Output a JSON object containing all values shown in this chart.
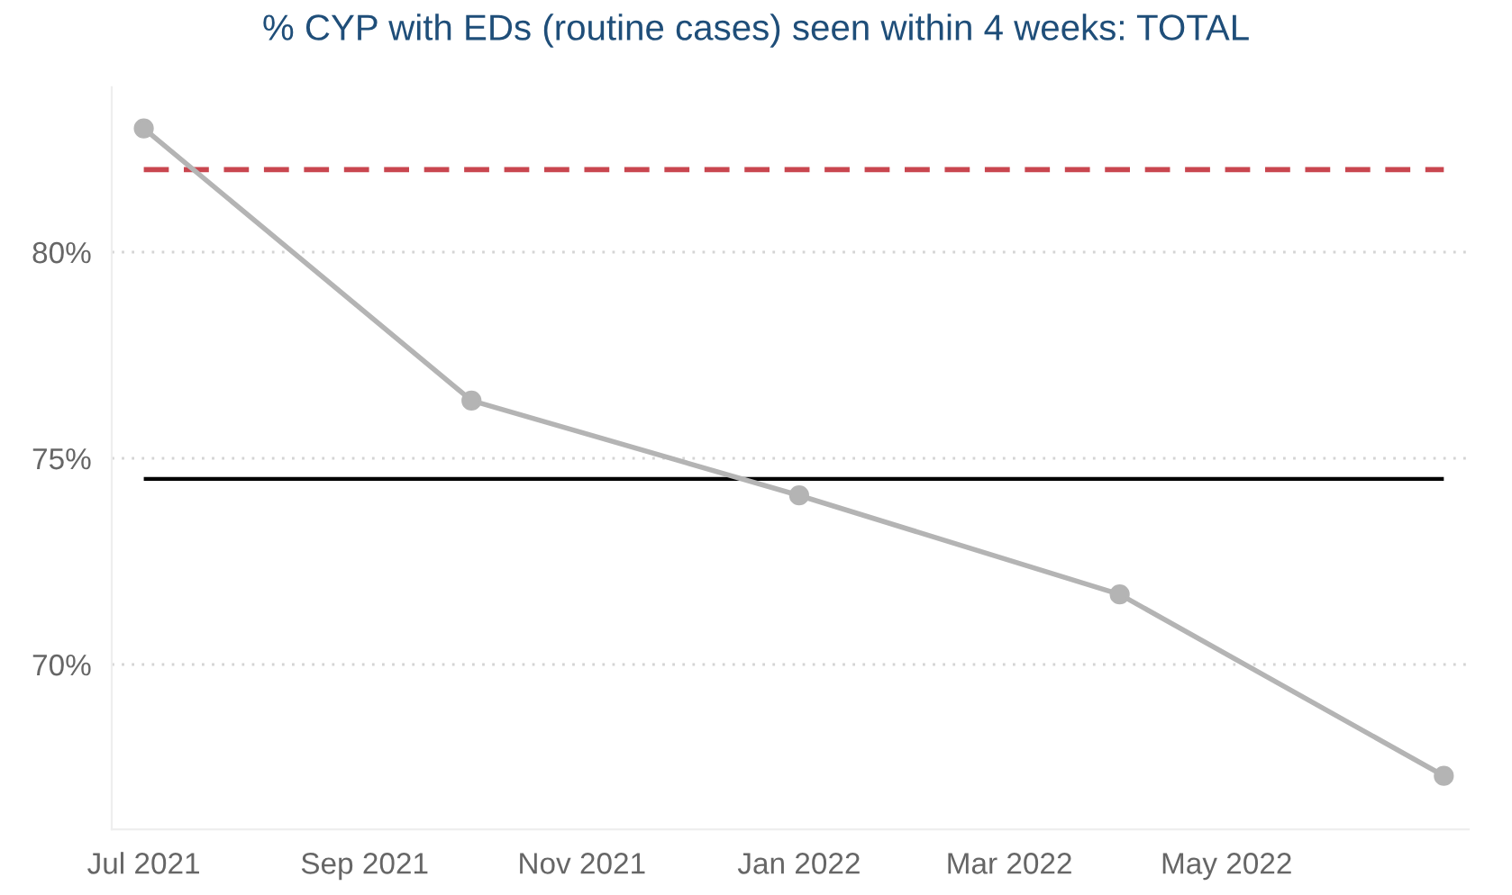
{
  "chart_data": {
    "type": "line",
    "title": "% CYP with EDs (routine cases) seen within 4 weeks: TOTAL",
    "x": [
      "2021-07",
      "2021-10",
      "2022-01",
      "2022-04",
      "2022-07"
    ],
    "series": [
      {
        "color": "#b4b4b4",
        "values": [
          83.0,
          76.4,
          74.1,
          71.7,
          67.3
        ]
      }
    ],
    "xlim": [
      "2021-06-22",
      "2022-07-08"
    ],
    "xticks": [
      {
        "value": "2021-07",
        "label": "Jul 2021"
      },
      {
        "value": "2021-09",
        "label": "Sep 2021"
      },
      {
        "value": "2021-11",
        "label": "Nov 2021"
      },
      {
        "value": "2022-01",
        "label": "Jan 2022"
      },
      {
        "value": "2022-03",
        "label": "Mar 2022"
      },
      {
        "value": "2022-05",
        "label": "May 2022"
      }
    ],
    "ylim": [
      66,
      84
    ],
    "yticks": [
      {
        "value": 70,
        "label": "70%"
      },
      {
        "value": 75,
        "label": "75%"
      },
      {
        "value": 80,
        "label": "80%"
      }
    ],
    "grid": "y",
    "marker": "circle",
    "line_style": "solid",
    "ref_lines": [
      {
        "axis": "y",
        "value": 82,
        "color": "#c9464f",
        "line_style": "dashed"
      },
      {
        "axis": "y",
        "value": 74.5,
        "color": "#000000",
        "line_style": "solid"
      }
    ]
  }
}
